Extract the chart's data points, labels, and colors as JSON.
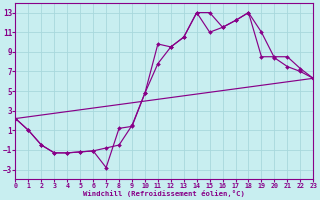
{
  "xlabel": "Windchill (Refroidissement éolien,°C)",
  "bg_color": "#c8eef0",
  "grid_color": "#a8d8dc",
  "line_color": "#880088",
  "xlim": [
    0,
    23
  ],
  "ylim": [
    -4,
    14
  ],
  "xticks": [
    0,
    1,
    2,
    3,
    4,
    5,
    6,
    7,
    8,
    9,
    10,
    11,
    12,
    13,
    14,
    15,
    16,
    17,
    18,
    19,
    20,
    21,
    22,
    23
  ],
  "yticks": [
    -3,
    -1,
    1,
    3,
    5,
    7,
    9,
    11,
    13
  ],
  "line1_x": [
    0,
    1,
    2,
    3,
    4,
    5,
    6,
    7,
    8,
    9,
    10,
    11,
    12,
    13,
    14,
    15,
    16,
    17,
    18,
    19,
    20,
    21,
    22,
    23
  ],
  "line1_y": [
    2.2,
    1.0,
    -0.5,
    -1.3,
    -1.3,
    -1.2,
    -1.1,
    -2.8,
    1.2,
    1.4,
    4.8,
    9.8,
    9.5,
    10.5,
    13.0,
    13.0,
    11.5,
    12.2,
    13.0,
    11.0,
    8.4,
    7.5,
    7.0,
    6.3
  ],
  "line2_x": [
    0,
    1,
    2,
    3,
    4,
    5,
    6,
    7,
    8,
    9,
    10,
    11,
    12,
    13,
    14,
    15,
    16,
    17,
    18,
    19,
    20,
    21,
    22,
    23
  ],
  "line2_y": [
    2.2,
    1.0,
    -0.5,
    -1.3,
    -1.3,
    -1.2,
    -1.1,
    -0.8,
    -0.5,
    1.5,
    4.8,
    7.8,
    9.5,
    10.5,
    13.0,
    11.0,
    11.5,
    12.2,
    13.0,
    8.5,
    8.5,
    8.5,
    7.3,
    6.3
  ],
  "line3_x": [
    0,
    23
  ],
  "line3_y": [
    2.2,
    6.3
  ]
}
